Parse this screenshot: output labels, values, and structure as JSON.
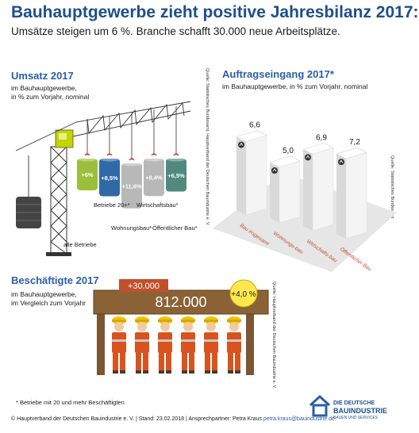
{
  "header": {
    "title": "Bauhauptgewerbe zieht positive Jahresbilanz 2017:",
    "subtitle": "Umsätze steigen um 6 %. Branche schafft 30.000 neue Arbeitsplätze."
  },
  "umsatz": {
    "title": "Umsatz 2017",
    "desc_line1": "im Bauhauptgewerbe,",
    "desc_line2": "in % zum Vorjahr, nominal",
    "source": "Quelle: Statistisches Bundesamt, Hauptverband der Deutschen Bauindustrie e. V."
  },
  "auftrag": {
    "title": "Auftragseingang 2017*",
    "desc_line1": "im Bauhauptgewerbe, in % zum Vorjahr, nominal",
    "source": "Quelle: Statistisches Bundesamt"
  },
  "beschaeftigte": {
    "title": "Beschäftigte 2017",
    "desc_line1": "im Bauhauptgewerbe,",
    "desc_line2": "im Vergleich zum Vorjahr",
    "plus_label": "+30.000",
    "total_label": "812.000",
    "pct_label": "+4,0 %",
    "source": "Quelle: Hauptverband der Deutschen Bauindustrie e. V."
  },
  "chart_data": [
    {
      "type": "bar",
      "title": "Umsatz 2017",
      "categories": [
        "alle Betriebe",
        "Betriebe 20+*",
        "Wohnungsbau*",
        "Wirtschaftsbau*",
        "Öffentlicher Bau*"
      ],
      "value_labels": [
        "+6%",
        "+8,5%",
        "+11,6%",
        "+8,4%",
        "+6,5%"
      ],
      "values": [
        6.0,
        8.5,
        11.6,
        8.4,
        6.5
      ]
    },
    {
      "type": "bar",
      "title": "Auftragseingang 2017*",
      "categories": [
        "Bau insgesamt",
        "Wohnungs-bau",
        "Wirtschafts-bau",
        "Öffentlicher Bau"
      ],
      "value_labels": [
        "6,6",
        "5,0",
        "6,9",
        "7,2"
      ],
      "values": [
        6.6,
        5.0,
        6.9,
        7.2
      ]
    },
    {
      "type": "table",
      "title": "Beschäftigte 2017",
      "total": 812000,
      "change_abs": 30000,
      "change_pct": 4.0
    }
  ],
  "footer": {
    "footnote": "* Betriebe mit 20 und mehr Beschäftigten",
    "credit": "© Hauptverband der Deutschen Bauindustrie e. V. | Stand: 23.02.2018 | Ansprechpartner: Petra Kraus",
    "email": "petra.kraus@bauindustrie.de",
    "logo_line1": "DIE DEUTSCHE",
    "logo_line2": "BAUINDUSTRIE",
    "logo_line3": "BAUEN UND SERVICES"
  },
  "colors": {
    "title_blue": "#1f4e8c",
    "section_blue": "#2b5ea6",
    "crane_yellow": "#c6d400",
    "barrel_green": "#9bbf3a",
    "barrel_blue": "#2f6aa7",
    "barrel_gray": "#b8b8b8",
    "barrel_teal": "#4f8a7d",
    "board_brown": "#7a5632",
    "badge_orange": "#c0502a",
    "badge_yellow": "#ffe84d",
    "worker_orange": "#d9531e",
    "helmet_yellow": "#f3c400"
  }
}
